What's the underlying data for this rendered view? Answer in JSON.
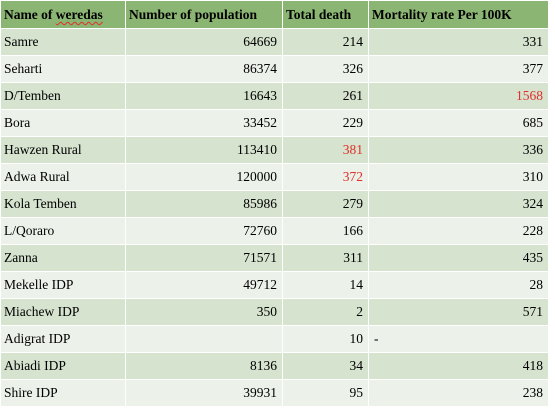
{
  "headers": {
    "name_prefix": "Name of ",
    "name_word": "weredas",
    "population": "Number of population",
    "deaths": "Total death",
    "mortality": "Mortality rate Per 100K"
  },
  "colors": {
    "header_bg": "#8bb572",
    "row_odd_bg": "#d6e3cf",
    "row_even_bg": "#ecf1ea",
    "highlight_text": "#e0302a"
  },
  "rows": [
    {
      "name": "Samre",
      "population": "64669",
      "deaths": "214",
      "mortality": "331"
    },
    {
      "name": "Seharti",
      "population": "86374",
      "deaths": "326",
      "mortality": "377"
    },
    {
      "name": "D/Temben",
      "population": "16643",
      "deaths": "261",
      "mortality": "1568"
    },
    {
      "name": "Bora",
      "population": "33452",
      "deaths": "229",
      "mortality": "685"
    },
    {
      "name": "Hawzen Rural",
      "population": "113410",
      "deaths": "381",
      "mortality": "336"
    },
    {
      "name": "Adwa Rural",
      "population": "120000",
      "deaths": "372",
      "mortality": "310"
    },
    {
      "name": "Kola Temben",
      "population": "85986",
      "deaths": "279",
      "mortality": "324"
    },
    {
      "name": "L/Qoraro",
      "population": "72760",
      "deaths": "166",
      "mortality": "228"
    },
    {
      "name": "Zanna",
      "population": "71571",
      "deaths": "311",
      "mortality": "435"
    },
    {
      "name": "Mekelle IDP",
      "population": "49712",
      "deaths": "14",
      "mortality": "28"
    },
    {
      "name": "Miachew IDP",
      "population": "350",
      "deaths": "2",
      "mortality": "571"
    },
    {
      "name": "Adigrat IDP",
      "population": "",
      "deaths": "10",
      "mortality": "-"
    },
    {
      "name": "Abiadi IDP",
      "population": "8136",
      "deaths": "34",
      "mortality": "418"
    },
    {
      "name": "Shire IDP",
      "population": "39931",
      "deaths": "95",
      "mortality": "238"
    }
  ]
}
